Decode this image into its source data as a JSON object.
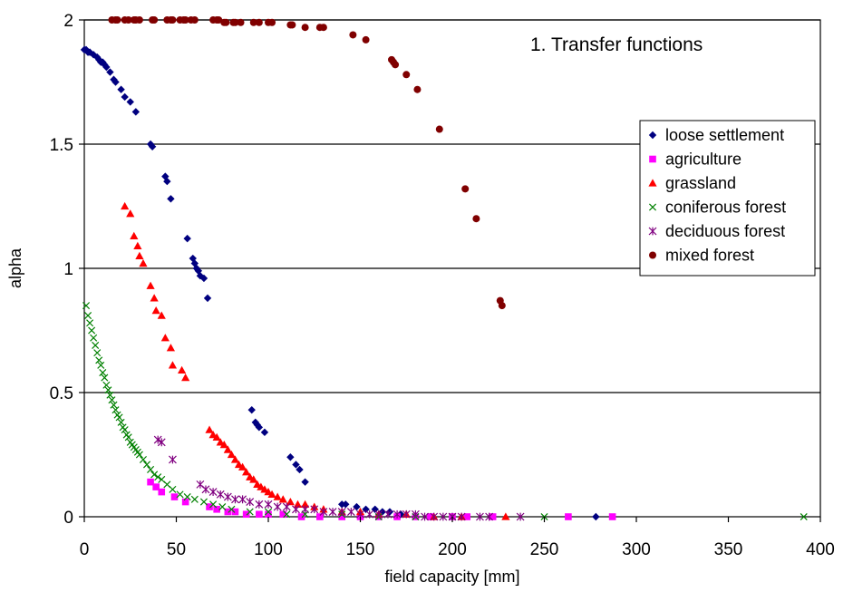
{
  "chart_data": {
    "type": "scatter",
    "title": "",
    "annotation": "1. Transfer functions",
    "xlabel": "field capacity [mm]",
    "ylabel": "alpha",
    "xlim": [
      0,
      400
    ],
    "ylim": [
      0,
      2
    ],
    "xticks": [
      0,
      50,
      100,
      150,
      200,
      250,
      300,
      350,
      400
    ],
    "yticks": [
      0,
      0.5,
      1,
      1.5,
      2
    ],
    "ytick_labels": [
      "0",
      "0.5",
      "1",
      "1.5",
      "2"
    ],
    "grid": "horizontal",
    "legend_position": "right",
    "series": [
      {
        "name": "loose settlement",
        "color": "#000080",
        "marker": "diamond",
        "x": [
          0,
          1,
          2,
          3,
          5,
          7,
          8,
          9,
          10,
          11,
          12,
          14,
          16,
          17,
          20,
          22,
          25,
          28,
          36,
          37,
          44,
          45,
          47,
          56,
          59,
          60,
          61,
          62,
          63,
          65,
          67,
          91,
          93,
          94,
          95,
          98,
          112,
          115,
          117,
          120,
          140,
          142,
          148,
          153,
          158,
          162,
          166,
          172,
          278
        ],
        "y": [
          1.88,
          1.88,
          1.87,
          1.87,
          1.86,
          1.85,
          1.84,
          1.83,
          1.83,
          1.82,
          1.81,
          1.79,
          1.76,
          1.75,
          1.72,
          1.69,
          1.67,
          1.63,
          1.5,
          1.49,
          1.37,
          1.35,
          1.28,
          1.12,
          1.04,
          1.02,
          1.0,
          0.99,
          0.97,
          0.96,
          0.88,
          0.43,
          0.38,
          0.37,
          0.36,
          0.34,
          0.24,
          0.21,
          0.19,
          0.14,
          0.05,
          0.05,
          0.04,
          0.03,
          0.03,
          0.02,
          0.02,
          0.01,
          0.0
        ]
      },
      {
        "name": "agriculture",
        "color": "#FF00FF",
        "marker": "square",
        "x": [
          36,
          39,
          42,
          49,
          55,
          68,
          72,
          78,
          82,
          88,
          95,
          100,
          108,
          118,
          128,
          140,
          150,
          160,
          170,
          180,
          188,
          200,
          208,
          222,
          263,
          287
        ],
        "y": [
          0.14,
          0.12,
          0.1,
          0.08,
          0.06,
          0.04,
          0.03,
          0.02,
          0.02,
          0.01,
          0.01,
          0.01,
          0.01,
          0.0,
          0.0,
          0.0,
          0.0,
          0.0,
          0.0,
          0.0,
          0.0,
          0.0,
          0.0,
          0.0,
          0.0,
          0.0
        ]
      },
      {
        "name": "grassland",
        "color": "#FF0000",
        "marker": "triangle",
        "x": [
          22,
          25,
          27,
          29,
          30,
          32,
          36,
          38,
          39,
          42,
          44,
          47,
          48,
          53,
          55,
          68,
          70,
          72,
          74,
          76,
          78,
          80,
          82,
          84,
          86,
          88,
          90,
          92,
          94,
          96,
          98,
          100,
          102,
          105,
          108,
          112,
          116,
          120,
          125,
          130,
          140,
          150,
          160,
          175,
          190,
          205,
          229
        ],
        "y": [
          1.25,
          1.22,
          1.13,
          1.09,
          1.05,
          1.02,
          0.93,
          0.88,
          0.83,
          0.81,
          0.72,
          0.68,
          0.61,
          0.59,
          0.56,
          0.35,
          0.33,
          0.32,
          0.3,
          0.29,
          0.27,
          0.25,
          0.23,
          0.21,
          0.2,
          0.18,
          0.16,
          0.15,
          0.13,
          0.12,
          0.11,
          0.1,
          0.09,
          0.08,
          0.07,
          0.06,
          0.05,
          0.05,
          0.04,
          0.03,
          0.02,
          0.02,
          0.01,
          0.01,
          0.0,
          0.0,
          0.0
        ]
      },
      {
        "name": "coniferous forest",
        "color": "#008000",
        "marker": "x",
        "x": [
          1,
          2,
          3,
          4,
          5,
          6,
          7,
          8,
          9,
          10,
          11,
          12,
          13,
          14,
          15,
          16,
          17,
          18,
          19,
          20,
          21,
          22,
          23,
          24,
          25,
          26,
          27,
          28,
          29,
          30,
          32,
          34,
          36,
          38,
          40,
          42,
          45,
          48,
          52,
          56,
          60,
          65,
          70,
          75,
          80,
          90,
          100,
          110,
          120,
          140,
          160,
          180,
          200,
          250,
          391
        ],
        "y": [
          0.85,
          0.81,
          0.78,
          0.75,
          0.72,
          0.69,
          0.66,
          0.63,
          0.61,
          0.58,
          0.56,
          0.53,
          0.51,
          0.49,
          0.47,
          0.45,
          0.43,
          0.41,
          0.4,
          0.38,
          0.36,
          0.35,
          0.33,
          0.32,
          0.3,
          0.29,
          0.28,
          0.27,
          0.26,
          0.25,
          0.23,
          0.21,
          0.19,
          0.17,
          0.16,
          0.15,
          0.13,
          0.11,
          0.09,
          0.08,
          0.07,
          0.06,
          0.05,
          0.04,
          0.03,
          0.02,
          0.02,
          0.01,
          0.01,
          0.01,
          0.0,
          0.0,
          0.0,
          0.0,
          0.0
        ]
      },
      {
        "name": "deciduous forest",
        "color": "#800080",
        "marker": "star",
        "x": [
          40,
          42,
          48,
          63,
          66,
          70,
          74,
          78,
          82,
          86,
          90,
          95,
          100,
          105,
          110,
          115,
          120,
          125,
          130,
          135,
          140,
          145,
          150,
          155,
          160,
          165,
          170,
          175,
          180,
          185,
          190,
          195,
          200,
          205,
          215,
          220,
          237
        ],
        "y": [
          0.31,
          0.3,
          0.23,
          0.13,
          0.11,
          0.1,
          0.09,
          0.08,
          0.07,
          0.07,
          0.06,
          0.05,
          0.05,
          0.04,
          0.04,
          0.03,
          0.03,
          0.03,
          0.02,
          0.02,
          0.02,
          0.02,
          0.01,
          0.01,
          0.01,
          0.01,
          0.01,
          0.01,
          0.01,
          0.0,
          0.0,
          0.0,
          0.0,
          0.0,
          0.0,
          0.0,
          0.0
        ]
      },
      {
        "name": "mixed forest",
        "color": "#800000",
        "marker": "circle",
        "x": [
          15,
          17,
          18,
          22,
          24,
          27,
          28,
          30,
          37,
          38,
          45,
          47,
          48,
          52,
          54,
          55,
          58,
          60,
          70,
          72,
          73,
          76,
          77,
          81,
          82,
          85,
          92,
          95,
          100,
          102,
          112,
          113,
          120,
          128,
          130,
          146,
          153,
          167,
          168,
          169,
          175,
          181,
          193,
          207,
          213,
          226,
          227
        ],
        "y": [
          2.0,
          2.0,
          2.0,
          2.0,
          2.0,
          2.0,
          2.0,
          2.0,
          2.0,
          2.0,
          2.0,
          2.0,
          2.0,
          2.0,
          2.0,
          2.0,
          2.0,
          2.0,
          2.0,
          2.0,
          2.0,
          1.99,
          1.99,
          1.99,
          1.99,
          1.99,
          1.99,
          1.99,
          1.99,
          1.99,
          1.98,
          1.98,
          1.97,
          1.97,
          1.97,
          1.94,
          1.92,
          1.84,
          1.83,
          1.82,
          1.78,
          1.72,
          1.56,
          1.32,
          1.2,
          0.87,
          0.85
        ]
      }
    ]
  }
}
